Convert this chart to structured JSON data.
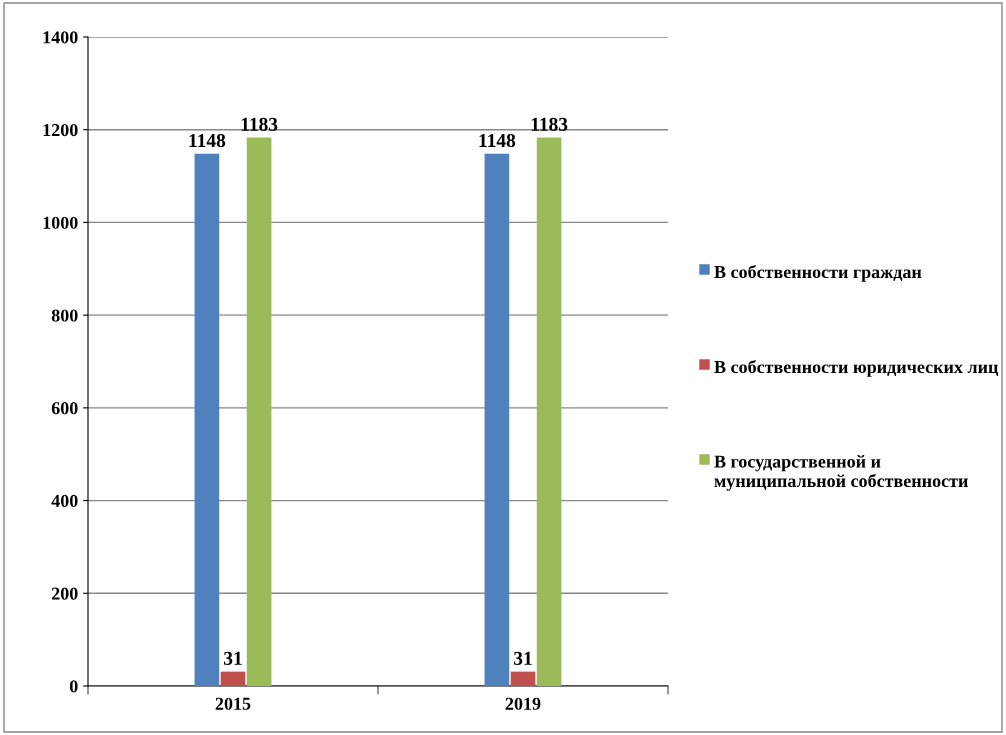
{
  "chart_data": {
    "type": "bar",
    "categories": [
      "2015",
      "2019"
    ],
    "series": [
      {
        "name": "В собственности граждан",
        "color": "#4f81bd",
        "values": [
          1148,
          1148
        ]
      },
      {
        "name": "В собственности юридических лиц",
        "color": "#c0504d",
        "values": [
          31,
          31
        ]
      },
      {
        "name": "В государственной и муниципальной собственности",
        "color": "#9bbb59",
        "values": [
          1183,
          1183
        ]
      }
    ],
    "ylim": [
      0,
      1400
    ],
    "yticks": [
      0,
      200,
      400,
      600,
      800,
      1000,
      1200,
      1400
    ],
    "grid": "y",
    "legend": "right",
    "data_labels": true
  }
}
